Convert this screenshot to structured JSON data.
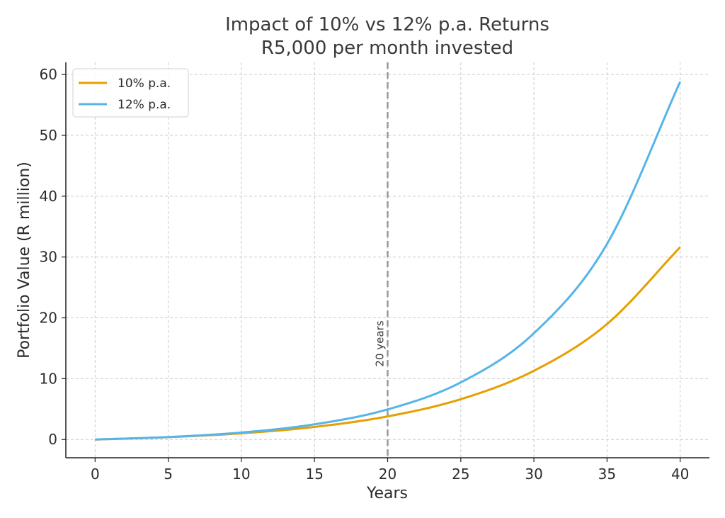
{
  "chart_data": {
    "type": "line",
    "title": "Impact of 10% vs 12% p.a. Returns",
    "subtitle": "R5,000 per month invested",
    "xlabel": "Years",
    "ylabel": "Portfolio Value (R million)",
    "xlim": [
      -2,
      42
    ],
    "ylim": [
      -3,
      62
    ],
    "xticks": [
      0,
      5,
      10,
      15,
      20,
      25,
      30,
      35,
      40
    ],
    "yticks": [
      0,
      10,
      20,
      30,
      40,
      50,
      60
    ],
    "grid": true,
    "legend_position": "top-left",
    "x": [
      0,
      5,
      10,
      15,
      20,
      25,
      30,
      35,
      40
    ],
    "series": [
      {
        "name": "10% p.a.",
        "color": "#E69F00",
        "values": [
          0,
          0.39,
          1.02,
          2.07,
          3.8,
          6.63,
          11.3,
          18.99,
          31.62
        ]
      },
      {
        "name": "12% p.a.",
        "color": "#56B4E9",
        "values": [
          0,
          0.41,
          1.15,
          2.5,
          4.95,
          9.39,
          17.47,
          32.15,
          58.82
        ]
      }
    ],
    "annotations": [
      {
        "type": "vline",
        "x": 20,
        "label": "20 years",
        "color": "#999999"
      }
    ]
  }
}
